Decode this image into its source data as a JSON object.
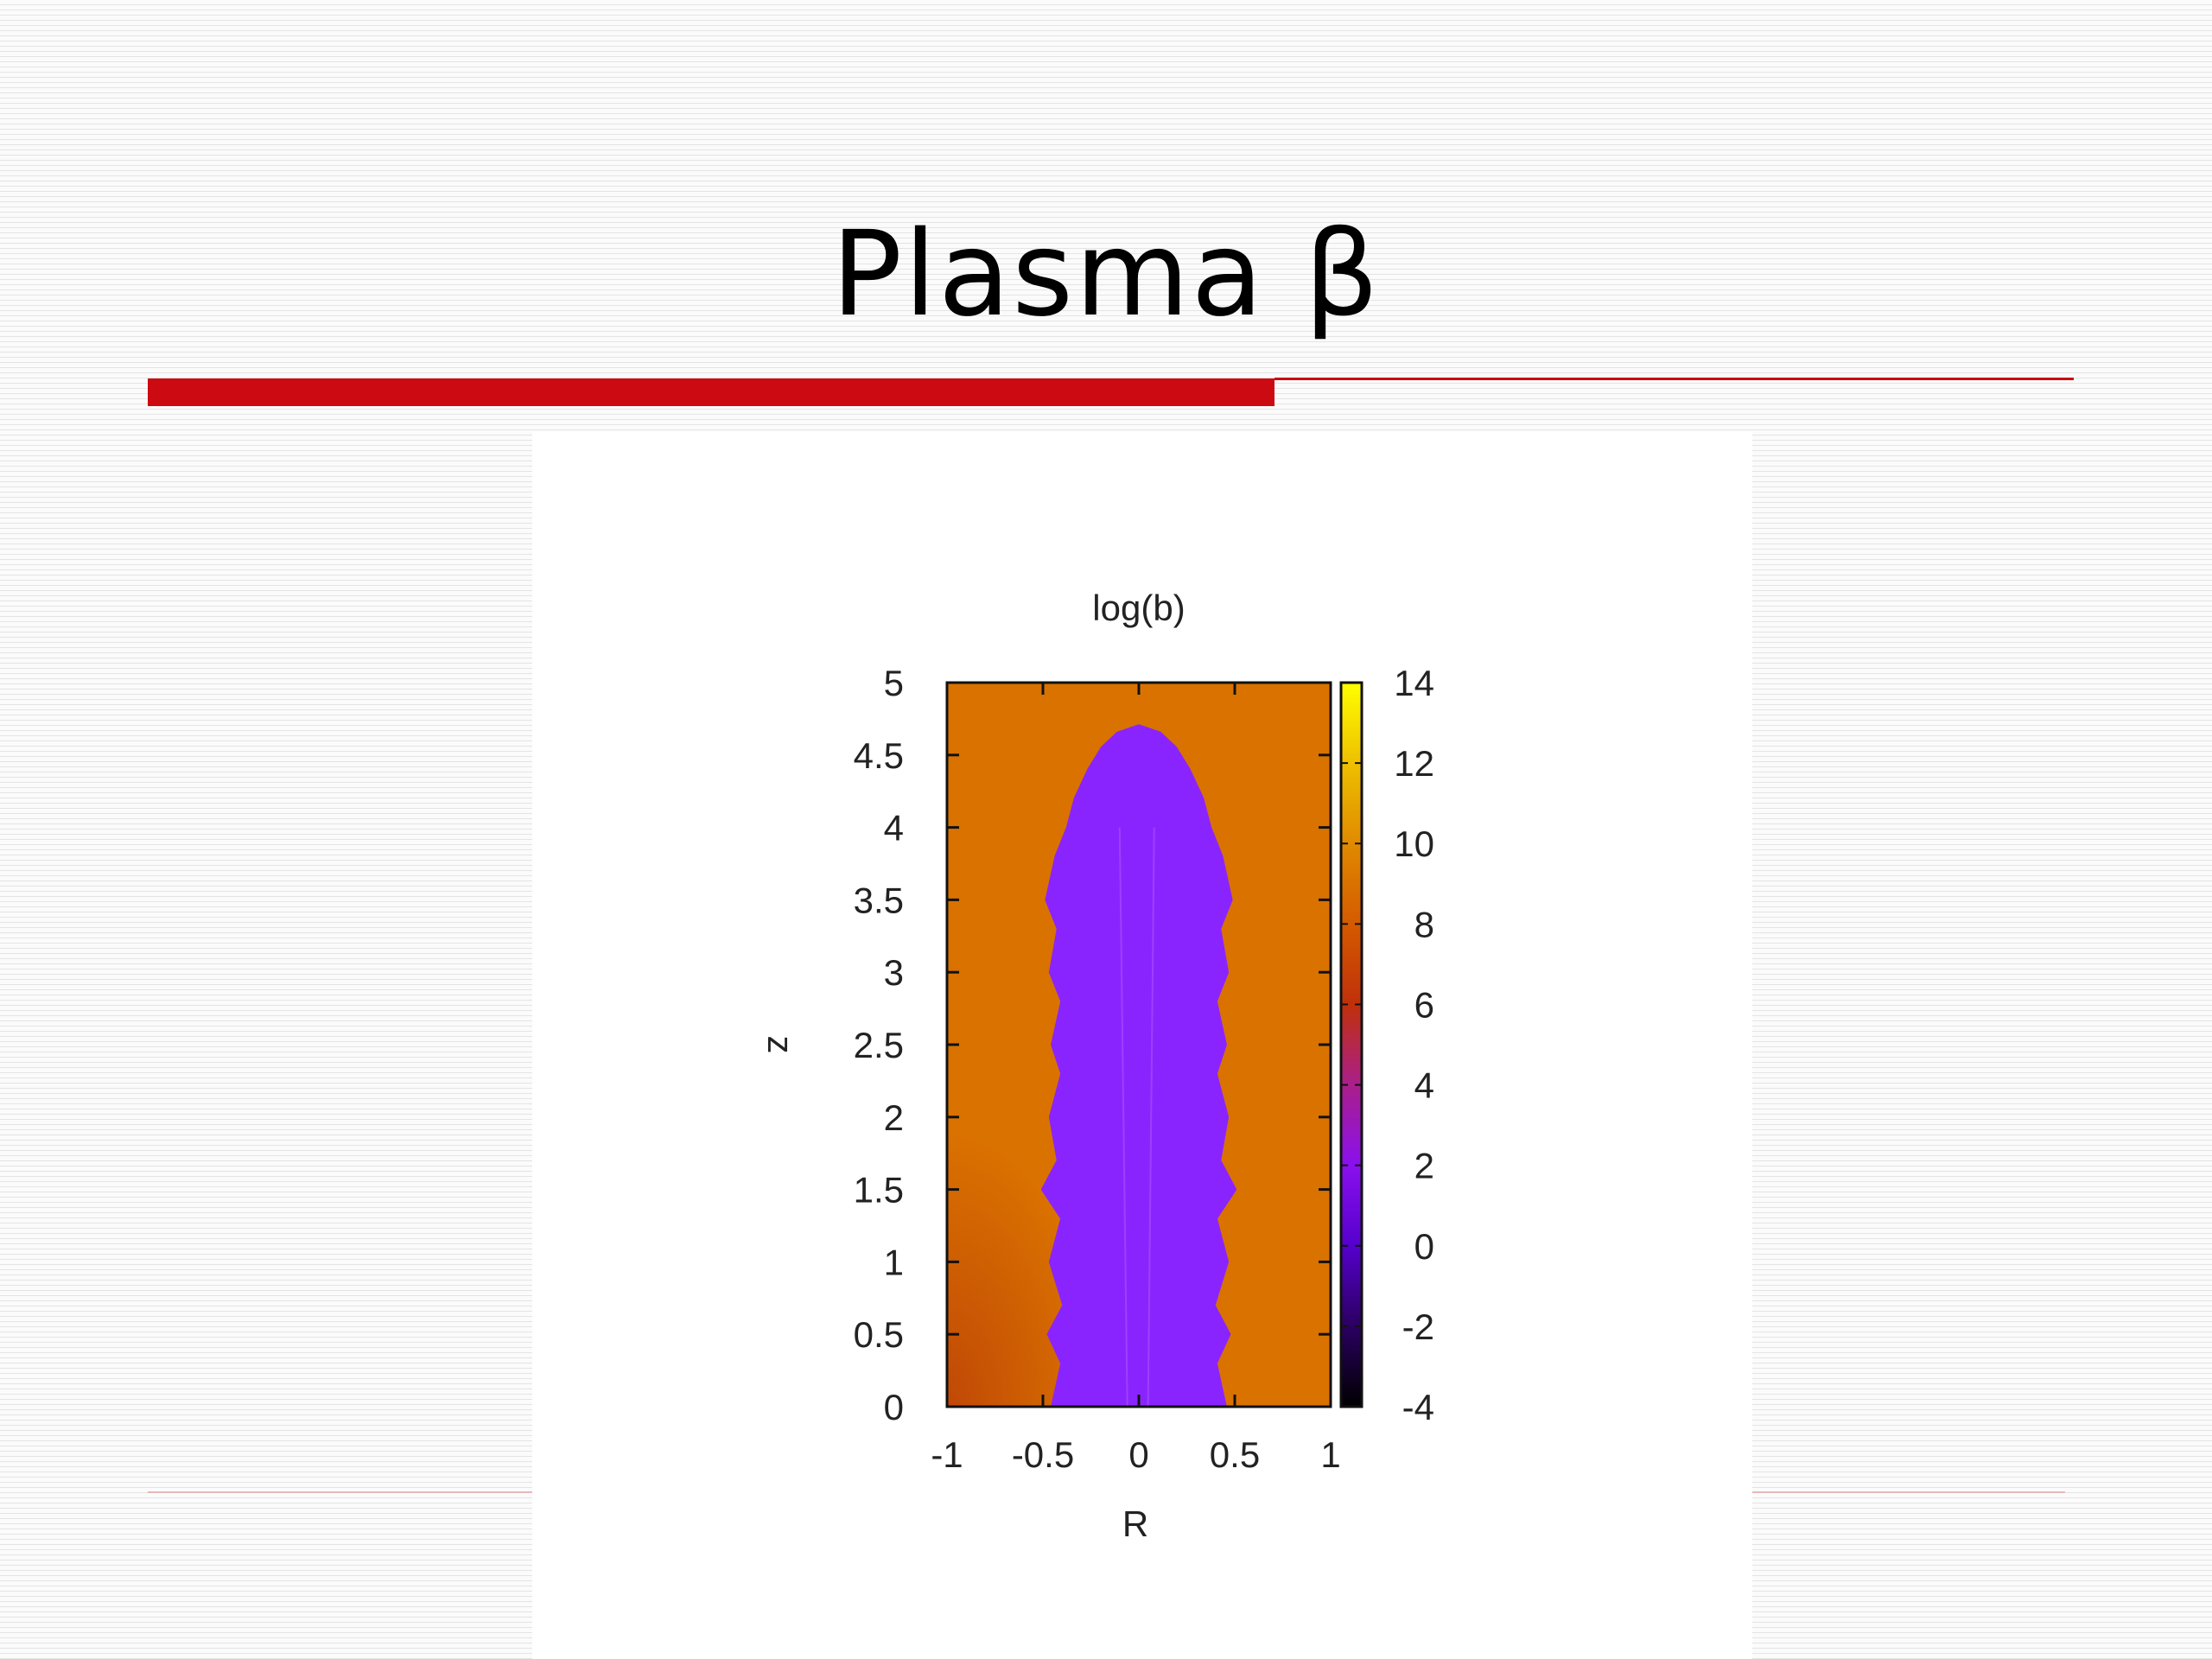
{
  "slide": {
    "title": "Plasma β",
    "accent_color": "#cc0a12",
    "footer_line_color": "#e8b8ba"
  },
  "chart_data": {
    "type": "heatmap",
    "title": "log(b)",
    "xlabel": "R",
    "ylabel": "z",
    "xlim": [
      -1,
      1
    ],
    "ylim": [
      0,
      5
    ],
    "x_ticks": [
      "-1",
      "-0.5",
      "0",
      "0.5",
      "1"
    ],
    "x_tick_values": [
      -1,
      -0.5,
      0,
      0.5,
      1
    ],
    "y_ticks": [
      "0",
      "0.5",
      "1",
      "1.5",
      "2",
      "2.5",
      "3",
      "3.5",
      "4",
      "4.5",
      "5"
    ],
    "y_tick_values": [
      0,
      0.5,
      1,
      1.5,
      2,
      2.5,
      3,
      3.5,
      4,
      4.5,
      5
    ],
    "colorbar": {
      "range": [
        -4,
        14
      ],
      "ticks": [
        "14",
        "12",
        "10",
        "8",
        "6",
        "4",
        "2",
        "0",
        "-2",
        "-4"
      ],
      "tick_values": [
        14,
        12,
        10,
        8,
        6,
        4,
        2,
        0,
        -2,
        -4
      ],
      "colormap": "gnuplot-pm3d",
      "stops": [
        {
          "value": -4,
          "color": "#000000"
        },
        {
          "value": -2,
          "color": "#2a0060"
        },
        {
          "value": 0,
          "color": "#5500cc"
        },
        {
          "value": 2,
          "color": "#8a10ee"
        },
        {
          "value": 4,
          "color": "#aa1f8a"
        },
        {
          "value": 6,
          "color": "#c0300a"
        },
        {
          "value": 8,
          "color": "#d45a00"
        },
        {
          "value": 10,
          "color": "#e08a00"
        },
        {
          "value": 12,
          "color": "#eec000"
        },
        {
          "value": 14,
          "color": "#ffff00"
        }
      ]
    },
    "background_value": 9,
    "jet_value": 1,
    "jet_color": "#8a24ff",
    "jet_boundary": {
      "z": [
        0,
        0.3,
        0.5,
        0.7,
        1.0,
        1.3,
        1.5,
        1.7,
        2.0,
        2.3,
        2.5,
        2.8,
        3.0,
        3.3,
        3.5,
        3.8,
        4.0,
        4.2,
        4.4,
        4.55,
        4.65,
        4.7
      ],
      "r": [
        0.45,
        0.4,
        0.47,
        0.39,
        0.46,
        0.4,
        0.5,
        0.42,
        0.46,
        0.4,
        0.45,
        0.4,
        0.46,
        0.42,
        0.48,
        0.43,
        0.37,
        0.33,
        0.26,
        0.19,
        0.11,
        0
      ]
    },
    "grid": false,
    "legend": "colorbar-right"
  }
}
